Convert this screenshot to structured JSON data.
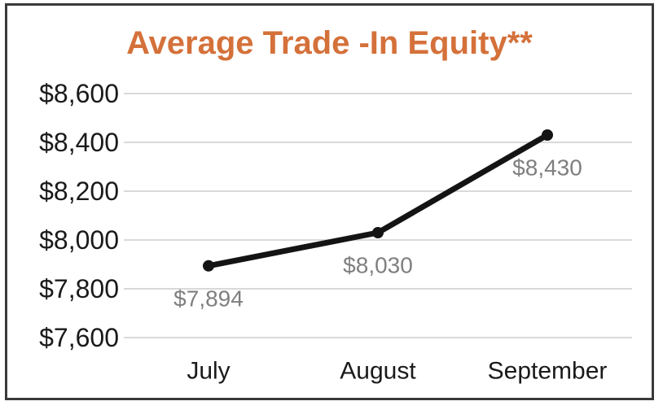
{
  "title": "Average Trade -In Equity**",
  "colors": {
    "title": "#D4713A",
    "line": "#141414",
    "marker": "#141414",
    "data_label": "#7f7f7f",
    "gridline": "#d9d9d9",
    "axis_text": "#1a1a1a",
    "frame_border": "#3a3a3a",
    "background": "#ffffff"
  },
  "chart_data": {
    "type": "line",
    "title": "Average Trade -In Equity**",
    "categories": [
      "July",
      "August",
      "September"
    ],
    "values": [
      7894,
      8030,
      8430
    ],
    "data_labels": [
      "$7,894",
      "$8,030",
      "$8,430"
    ],
    "y_ticks": [
      {
        "value": 8600,
        "label": "$8,600"
      },
      {
        "value": 8400,
        "label": "$8,400"
      },
      {
        "value": 8200,
        "label": "$8,200"
      },
      {
        "value": 8000,
        "label": "$8,000"
      },
      {
        "value": 7800,
        "label": "$7,800"
      },
      {
        "value": 7600,
        "label": "$7,600"
      }
    ],
    "ylim": [
      7600,
      8600
    ],
    "xlabel": "",
    "ylabel": "",
    "grid": true,
    "legend": false
  }
}
